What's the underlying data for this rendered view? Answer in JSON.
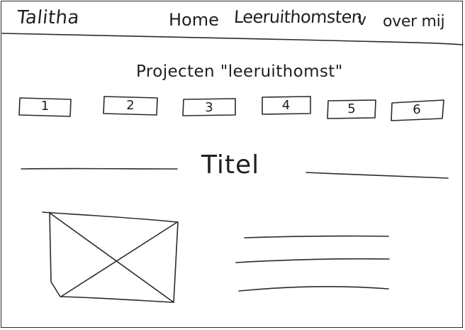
{
  "header": {
    "brand": "Talitha",
    "nav": {
      "home": "Home",
      "learning": "Leeruithomsten",
      "chevron": "v",
      "about": "over mij"
    }
  },
  "projects": {
    "heading": "Projecten \"leeruithomst\"",
    "tabs": [
      "1",
      "2",
      "3",
      "4",
      "5",
      "6"
    ]
  },
  "content": {
    "title": "Titel"
  }
}
